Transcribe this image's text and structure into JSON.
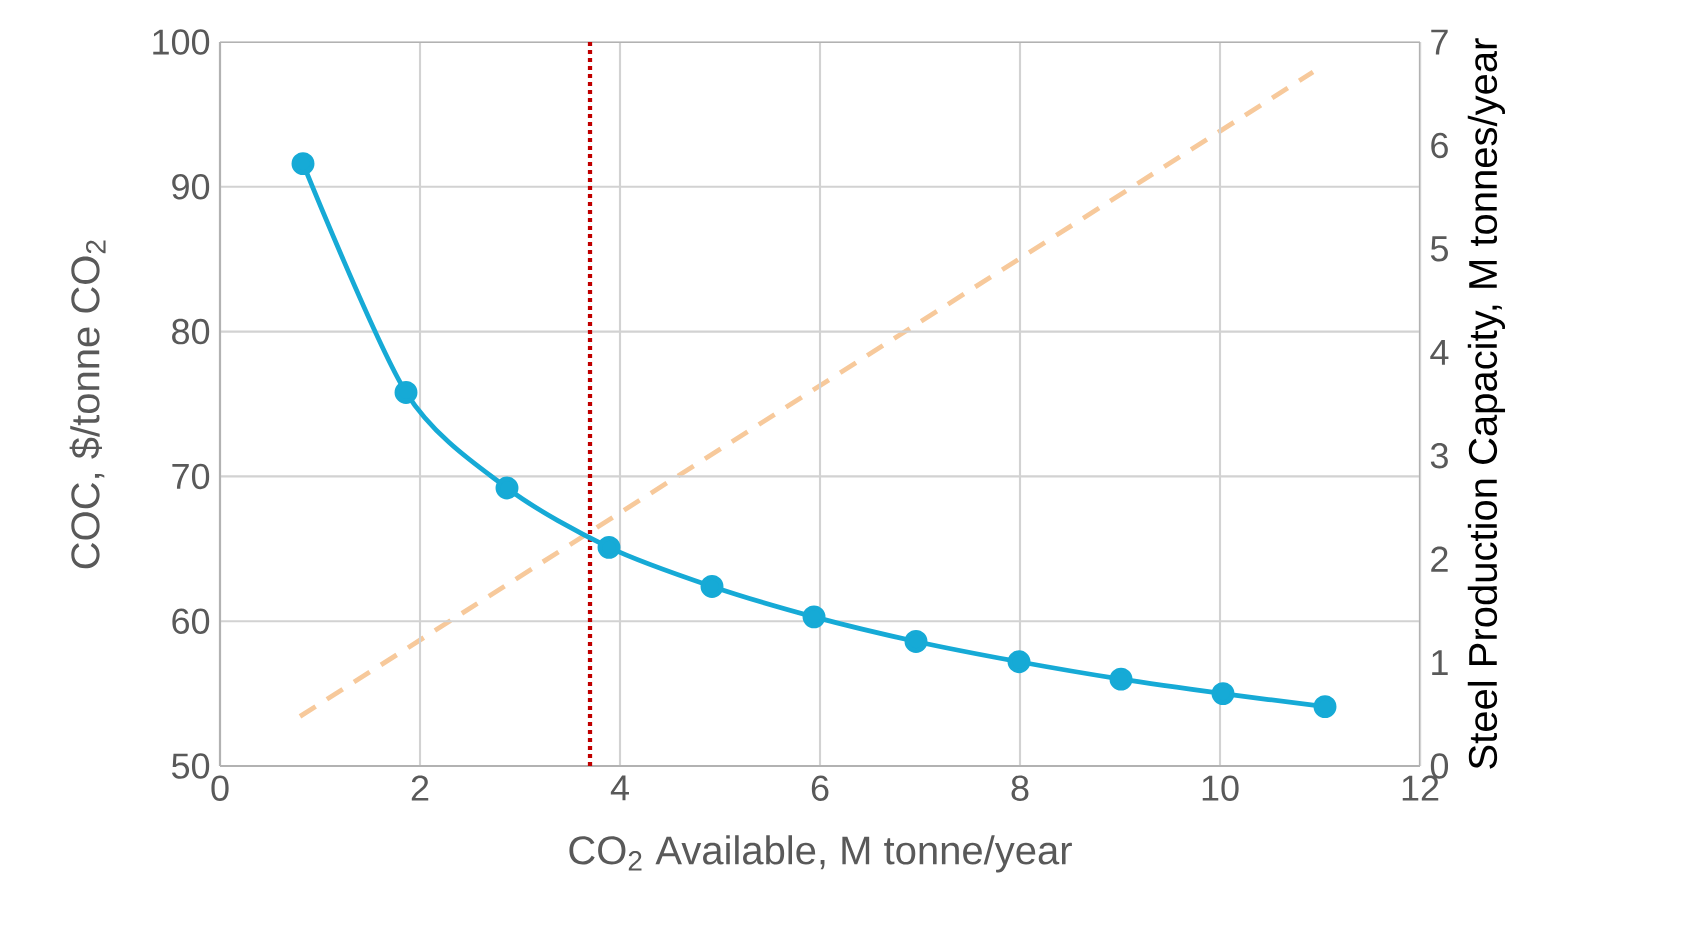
{
  "chart_data": {
    "type": "line",
    "xlabel": "CO$_{2}$ Available, M tonne/year",
    "ylabel": "COC, $/tonne CO$_{2}$",
    "y2label": "Steel Production Capacity, M tonnes/year",
    "xlim": [
      0,
      12
    ],
    "xticks": [
      0,
      2,
      4,
      6,
      8,
      10,
      12
    ],
    "ylim": [
      50,
      100
    ],
    "yticks": [
      50,
      60,
      70,
      80,
      90,
      100
    ],
    "y2lim": [
      0,
      7
    ],
    "y2ticks": [
      0,
      1,
      2,
      3,
      4,
      5,
      6,
      7
    ],
    "grid": true,
    "series": [
      {
        "color": "#16aad6",
        "marker": "circle",
        "line_style": "solid",
        "x": [
          0.83,
          1.86,
          2.87,
          3.89,
          4.92,
          5.94,
          6.96,
          7.99,
          9.01,
          10.03,
          11.05
        ],
        "values": [
          91.6,
          75.8,
          69.2,
          65.1,
          62.4,
          60.3,
          58.6,
          57.2,
          56.0,
          55.0,
          54.1
        ]
      },
      {
        "color": "#f7c99b",
        "marker": "none",
        "line_style": "dashed",
        "axis": "y2",
        "x": [
          0.8,
          10.93
        ],
        "values": [
          0.48,
          6.71
        ]
      }
    ],
    "ref_lines": [
      {
        "axis": "x",
        "value": 3.7,
        "color": "#c00000",
        "line_style": "dotted"
      }
    ]
  }
}
